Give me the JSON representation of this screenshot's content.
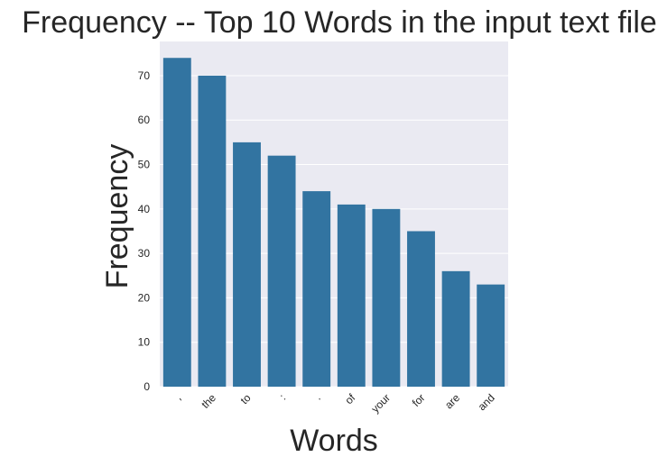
{
  "chart_data": {
    "type": "bar",
    "title": "Frequency -- Top 10 Words in the input text file",
    "xlabel": "Words",
    "ylabel": "Frequency",
    "categories": [
      ",",
      "the",
      "to",
      ":",
      ".",
      "of",
      "your",
      "for",
      "are",
      "and"
    ],
    "values": [
      74,
      70,
      55,
      52,
      44,
      41,
      40,
      35,
      26,
      23
    ],
    "ylim": [
      0,
      77.7
    ],
    "yticks": [
      0,
      10,
      20,
      30,
      40,
      50,
      60,
      70
    ],
    "grid": true,
    "legend": "none",
    "colors": {
      "bar": "#3274a1",
      "background": "#eaeaf2",
      "grid": "#ffffff",
      "text": "#262626"
    }
  }
}
